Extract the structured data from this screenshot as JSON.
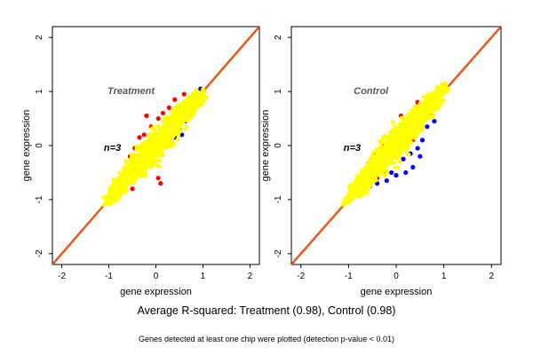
{
  "figure": {
    "caption_main": "Average R-squared: Treatment (0.98), Control (0.98)",
    "caption_sub": "Genes detected at least one chip were plotted (detection p-value < 0.01)"
  },
  "colors": {
    "background_panel": "#ffffff",
    "axis": "#000000",
    "annotation_title": "#595959",
    "annotation_n": "#000000",
    "point_bulk": "#ffff00",
    "point_up": "#ff0000",
    "point_down": "#0000ff",
    "point_edge": "#000000",
    "diag_outer": "#cc0000",
    "diag_inner": "#ffa500"
  },
  "chart_data": [
    {
      "type": "scatter",
      "panel_title": "Treatment",
      "n_label": "n=3",
      "xlabel": "gene expression",
      "ylabel": "gene expression",
      "xlim": [
        -2.2,
        2.2
      ],
      "ylim": [
        -2.2,
        2.2
      ],
      "xticks": [
        -2,
        -1,
        0,
        1,
        2
      ],
      "yticks": [
        -2,
        -1,
        0,
        1,
        2
      ],
      "reference_line": "y = x",
      "series": [
        {
          "color": "#ffff00",
          "role": "bulk",
          "cloud": {
            "from": [
              -1.1,
              -1.1
            ],
            "to": [
              1.05,
              1.05
            ],
            "spread": 0.09,
            "count": 1400
          }
        },
        {
          "color": "#ff0000",
          "role": "above",
          "points": [
            [
              -0.45,
              -0.05
            ],
            [
              -0.25,
              0.2
            ],
            [
              -0.1,
              0.35
            ],
            [
              0.05,
              0.5
            ],
            [
              0.15,
              0.6
            ],
            [
              0.28,
              0.7
            ],
            [
              -0.55,
              -0.2
            ],
            [
              0.4,
              0.85
            ],
            [
              -0.35,
              0.15
            ],
            [
              0.1,
              0.3
            ],
            [
              -0.2,
              0.55
            ],
            [
              0.05,
              -0.6
            ],
            [
              0.6,
              0.95
            ],
            [
              -0.5,
              -0.8
            ],
            [
              0.1,
              -0.7
            ]
          ]
        },
        {
          "color": "#0000ff",
          "role": "below",
          "points": [
            [
              -0.85,
              -0.75
            ],
            [
              -0.95,
              -0.95
            ],
            [
              -0.7,
              -0.85
            ],
            [
              0.4,
              0.15
            ],
            [
              0.5,
              0.3
            ],
            [
              0.65,
              0.45
            ],
            [
              0.75,
              0.55
            ],
            [
              0.95,
              1.05
            ],
            [
              0.55,
              0.2
            ],
            [
              -0.75,
              -0.6
            ],
            [
              0.3,
              0.05
            ]
          ]
        }
      ]
    },
    {
      "type": "scatter",
      "panel_title": "Control",
      "n_label": "n=3",
      "xlabel": "gene expression",
      "ylabel": "gene expression",
      "xlim": [
        -2.2,
        2.2
      ],
      "ylim": [
        -2.2,
        2.2
      ],
      "xticks": [
        -2,
        -1,
        0,
        1,
        2
      ],
      "yticks": [
        -2,
        -1,
        0,
        1,
        2
      ],
      "reference_line": "y = x",
      "series": [
        {
          "color": "#ffff00",
          "role": "bulk",
          "cloud": {
            "from": [
              -1.1,
              -1.1
            ],
            "to": [
              1.1,
              1.15
            ],
            "spread": 0.09,
            "count": 1400
          }
        },
        {
          "color": "#ff0000",
          "role": "above",
          "points": [
            [
              -0.55,
              -0.3
            ],
            [
              -0.45,
              -0.15
            ],
            [
              -0.3,
              0.0
            ],
            [
              -0.15,
              0.1
            ],
            [
              0.0,
              0.25
            ],
            [
              0.2,
              0.45
            ],
            [
              -0.65,
              -0.5
            ],
            [
              -0.4,
              -0.6
            ],
            [
              -0.2,
              -0.5
            ],
            [
              0.35,
              0.1
            ],
            [
              -0.75,
              -0.7
            ],
            [
              0.1,
              0.55
            ],
            [
              0.45,
              0.8
            ]
          ]
        },
        {
          "color": "#0000ff",
          "role": "below",
          "points": [
            [
              -0.2,
              -0.65
            ],
            [
              0.0,
              -0.55
            ],
            [
              0.2,
              -0.5
            ],
            [
              0.35,
              -0.4
            ],
            [
              0.3,
              -0.15
            ],
            [
              0.45,
              -0.05
            ],
            [
              0.55,
              0.1
            ],
            [
              0.65,
              0.35
            ],
            [
              0.6,
              0.55
            ],
            [
              0.8,
              0.45
            ],
            [
              -0.1,
              -0.5
            ],
            [
              0.15,
              -0.25
            ],
            [
              -0.55,
              -0.75
            ],
            [
              -0.4,
              -0.7
            ],
            [
              0.5,
              -0.2
            ],
            [
              0.7,
              0.6
            ]
          ]
        }
      ]
    }
  ]
}
